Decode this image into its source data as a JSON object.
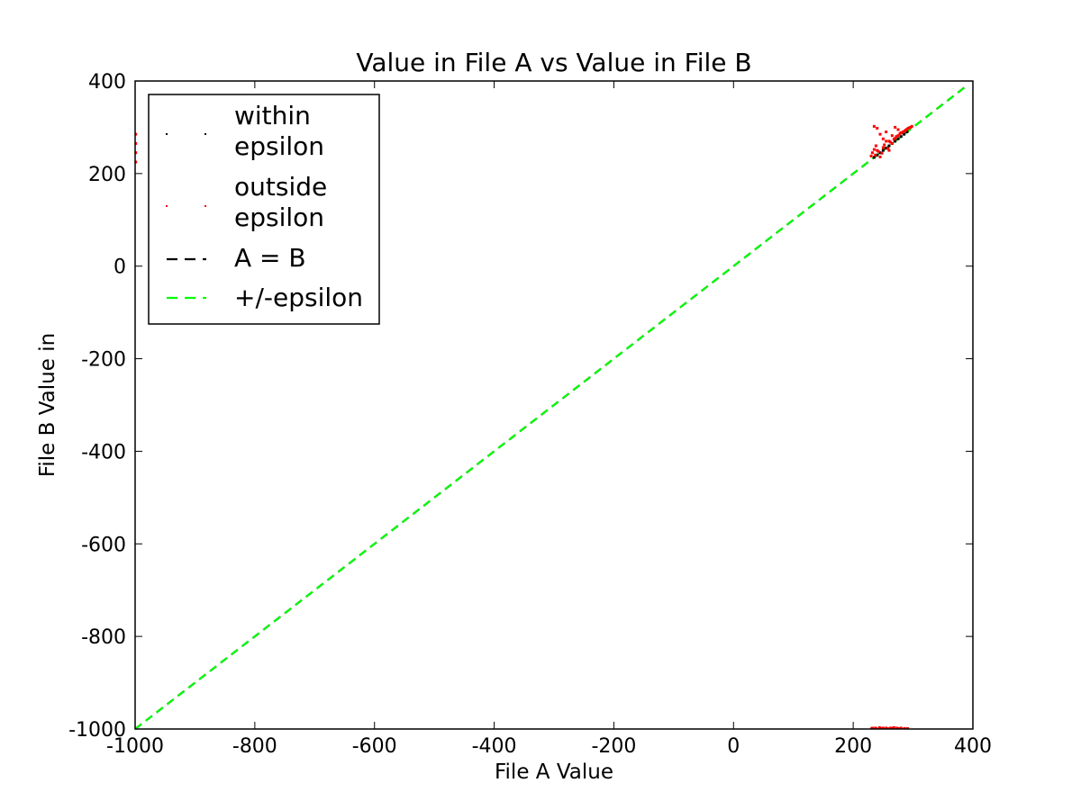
{
  "chart_data": {
    "type": "scatter",
    "title": "Value in File A vs Value in File B",
    "xlabel": "File A Value",
    "ylabel": "File B Value in",
    "xlim": [
      -1000,
      400
    ],
    "ylim": [
      -1000,
      400
    ],
    "xticks": [
      -1000,
      -800,
      -600,
      -400,
      -200,
      0,
      200,
      400
    ],
    "yticks": [
      -1000,
      -800,
      -600,
      -400,
      -200,
      0,
      200,
      400
    ],
    "x_tick_labels": [
      "-1000",
      "-800",
      "-600",
      "-400",
      "-200",
      "0",
      "200",
      "400"
    ],
    "y_tick_labels": [
      "-1000",
      "-800",
      "-600",
      "-400",
      "-200",
      "0",
      "200",
      "400"
    ],
    "grid": false,
    "legend_position": "top-left",
    "legend": [
      {
        "label_lines": [
          "within",
          "epsilon"
        ],
        "style": "dots",
        "color": "#000000"
      },
      {
        "label_lines": [
          "outside",
          "epsilon"
        ],
        "style": "dots",
        "color": "#ff0000"
      },
      {
        "label_lines": [
          "A = B"
        ],
        "style": "dashed-line",
        "color": "#000000"
      },
      {
        "label_lines": [
          "+/-epsilon"
        ],
        "style": "dashed-line",
        "color": "#00ff00"
      }
    ],
    "lines": [
      {
        "name": "A = B",
        "x": [
          -1000,
          390
        ],
        "y": [
          -1000,
          390
        ],
        "color": "#000000",
        "dash": true
      },
      {
        "name": "+/-epsilon",
        "x": [
          -1000,
          390
        ],
        "y": [
          -1000,
          390
        ],
        "color": "#00ff00",
        "dash": true
      }
    ],
    "series": [
      {
        "name": "within epsilon",
        "color": "#000000",
        "x": [
          235,
          240,
          245,
          250,
          255,
          260,
          265,
          270,
          275,
          280,
          285,
          290
        ],
        "y": [
          235,
          240,
          245,
          250,
          255,
          260,
          265,
          270,
          275,
          280,
          285,
          290
        ]
      },
      {
        "name": "outside epsilon",
        "color": "#ff0000",
        "x": [
          230,
          232,
          235,
          237,
          238,
          240,
          242,
          245,
          248,
          250,
          252,
          255,
          258,
          260,
          262,
          265,
          268,
          270,
          272,
          275,
          278,
          280,
          283,
          286,
          235,
          240,
          245,
          250,
          255,
          260,
          265,
          270,
          275,
          280,
          288,
          290,
          292,
          294,
          296,
          298,
          232,
          238,
          244,
          250,
          256,
          262,
          268,
          274,
          280,
          286,
          236,
          246,
          256,
          266,
          276,
          286,
          231,
          237,
          243,
          249,
          255,
          261,
          267,
          273,
          279,
          285,
          291,
          -999,
          -999,
          -999,
          -999
        ],
        "y": [
          238,
          245,
          252,
          240,
          260,
          250,
          248,
          236,
          244,
          256,
          262,
          270,
          254,
          250,
          268,
          265,
          274,
          276,
          280,
          282,
          286,
          288,
          290,
          292,
          302,
          298,
          285,
          275,
          290,
          270,
          282,
          300,
          295,
          288,
          294,
          296,
          298,
          299,
          300,
          302,
          -998,
          -999,
          -997,
          -998,
          -999,
          -998,
          -997,
          -999,
          -998,
          -999,
          -1000,
          -999,
          -1000,
          -998,
          -999,
          -1000,
          -999,
          -998,
          -1000,
          -999,
          -998,
          -999,
          -1000,
          -998,
          -999,
          -1000,
          -999,
          225,
          245,
          265,
          285
        ]
      }
    ]
  }
}
